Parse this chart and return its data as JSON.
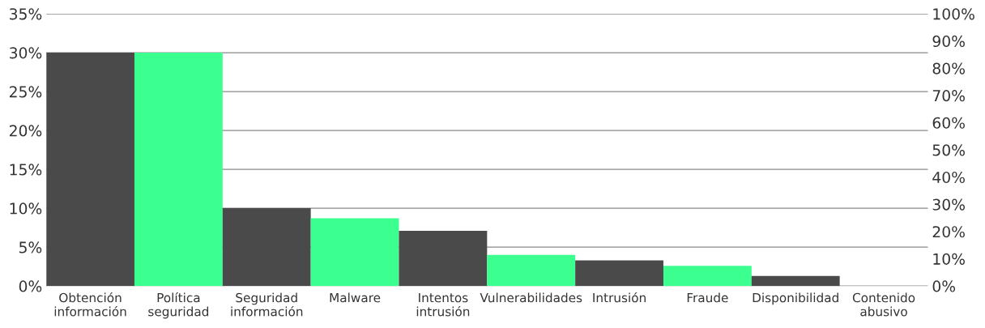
{
  "chart_data": {
    "type": "bar",
    "categories": [
      "Obtención\ninformación",
      "Política\nseguridad",
      "Seguridad\ninformación",
      "Malware",
      "Intentos\nintrusión",
      "Vulnerabilidades",
      "Intrusión",
      "Fraude",
      "Disponibilidad",
      "Contenido\nabusivo"
    ],
    "values": [
      30,
      30,
      10,
      8.7,
      7.1,
      4,
      3.3,
      2.6,
      1.3,
      0
    ],
    "colors": [
      "#4a4a4a",
      "#3bff8f",
      "#4a4a4a",
      "#3bff8f",
      "#4a4a4a",
      "#3bff8f",
      "#4a4a4a",
      "#3bff8f",
      "#4a4a4a",
      "#3bff8f"
    ],
    "ylim": [
      0,
      35
    ],
    "yticks": [
      {
        "value": 0,
        "label": "0%"
      },
      {
        "value": 5,
        "label": "5%"
      },
      {
        "value": 10,
        "label": "10%"
      },
      {
        "value": 15,
        "label": "15%"
      },
      {
        "value": 20,
        "label": "20%"
      },
      {
        "value": 25,
        "label": "25%"
      },
      {
        "value": 30,
        "label": "30%"
      },
      {
        "value": 35,
        "label": "35%"
      }
    ],
    "y2lim": [
      0,
      100
    ],
    "y2ticks": [
      {
        "value": 0,
        "label": "0%"
      },
      {
        "value": 10,
        "label": "10%"
      },
      {
        "value": 20,
        "label": "20%"
      },
      {
        "value": 30,
        "label": "30%"
      },
      {
        "value": 40,
        "label": "40%"
      },
      {
        "value": 50,
        "label": "50%"
      },
      {
        "value": 60,
        "label": "60%"
      },
      {
        "value": 70,
        "label": "70%"
      },
      {
        "value": 80,
        "label": "80%"
      },
      {
        "value": 90,
        "label": "90%"
      },
      {
        "value": 100,
        "label": "100%"
      }
    ],
    "grid": "y",
    "legend": false
  }
}
